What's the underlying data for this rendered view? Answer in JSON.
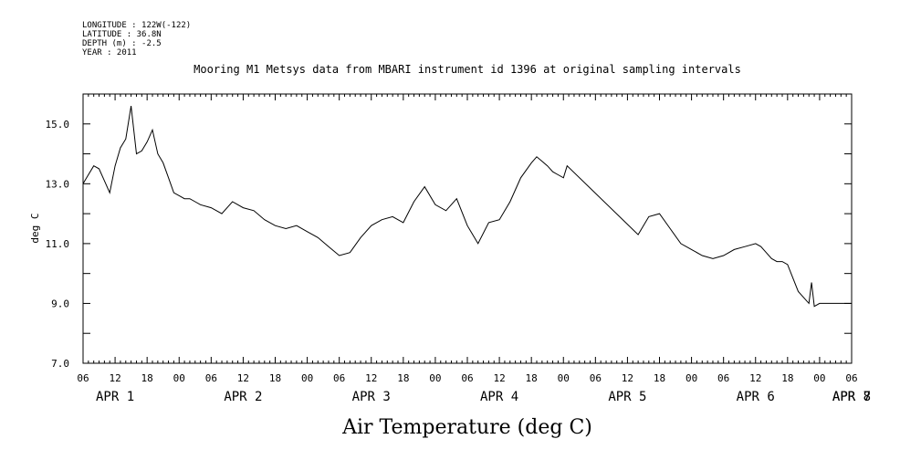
{
  "header": {
    "meta_lines": [
      "LONGITUDE : 122W(-122)",
      "LATITUDE : 36.8N",
      "DEPTH (m) : -2.5",
      "YEAR : 2011"
    ]
  },
  "chart_data": {
    "type": "line",
    "title": "Mooring M1 Metsys data from MBARI instrument id 1396 at original sampling intervals",
    "xlabel": "Air Temperature (deg C)",
    "ylabel": "deg C",
    "ylim": [
      7.0,
      16.0
    ],
    "y_ticks": [
      "7.0",
      "9.0",
      "11.0",
      "13.0",
      "15.0"
    ],
    "x_unit": "hours since APR 1 00:00",
    "xlim": [
      6,
      150
    ],
    "x_ticks": [
      "06",
      "12",
      "18",
      "00",
      "06",
      "12",
      "18",
      "00",
      "06",
      "12",
      "18",
      "00",
      "06",
      "12",
      "18",
      "00",
      "06",
      "12",
      "18",
      "00",
      "06",
      "12",
      "18",
      "00",
      "06"
    ],
    "x_date_labels": [
      "APR  1",
      "APR  2",
      "APR  3",
      "APR  4",
      "APR  5",
      "APR  6",
      "APR  7",
      "APR  8"
    ],
    "grid": false,
    "series": [
      {
        "x": [
          6.0,
          7.0,
          8.0,
          9.0,
          10.0,
          11.0,
          12.0,
          13.0,
          14.0,
          15.0,
          16.0,
          17.0,
          18.0,
          19.0,
          20.0,
          21.0,
          22.0,
          23.0,
          24.0,
          25.0,
          26.0,
          27.0,
          28.0,
          30.0,
          32.0,
          34.0,
          36.0,
          38.0,
          40.0,
          42.0,
          44.0,
          46.0,
          48.0,
          50.0,
          52.0,
          54.0,
          56.0,
          58.0,
          60.0,
          62.0,
          64.0,
          66.0,
          68.0,
          70.0,
          72.0,
          74.0,
          76.0,
          78.0,
          80.0,
          82.0,
          84.0,
          86.0,
          88.0,
          90.0,
          91.0,
          92.0,
          93.0,
          94.0,
          95.0,
          96.0,
          96.7,
          110.0,
          112.0,
          114.0,
          116.0,
          118.0,
          120.0,
          122.0,
          124.0,
          126.0,
          128.0,
          130.0,
          132.0,
          133.0,
          134.0,
          135.0,
          136.0,
          137.0,
          138.0,
          140.0,
          142.0,
          142.5,
          143.0,
          144.0,
          146.0,
          148.0,
          150.0
        ],
        "y": [
          13.0,
          13.3,
          13.6,
          13.5,
          13.1,
          12.7,
          13.6,
          14.2,
          14.5,
          15.6,
          14.0,
          14.1,
          14.4,
          14.8,
          14.0,
          13.7,
          13.2,
          12.7,
          12.6,
          12.5,
          12.5,
          12.4,
          12.3,
          12.2,
          12.0,
          12.4,
          12.2,
          12.1,
          11.8,
          11.6,
          11.5,
          11.6,
          11.4,
          11.2,
          10.9,
          10.6,
          10.7,
          11.2,
          11.6,
          11.8,
          11.9,
          11.7,
          12.4,
          12.9,
          12.3,
          12.1,
          12.5,
          11.6,
          11.0,
          11.7,
          11.8,
          12.4,
          13.2,
          13.7,
          13.9,
          13.75,
          13.6,
          13.4,
          13.3,
          13.2,
          13.6,
          11.3,
          11.9,
          12.0,
          11.5,
          11.0,
          10.8,
          10.6,
          10.5,
          10.6,
          10.8,
          10.9,
          11.0,
          10.9,
          10.7,
          10.5,
          10.4,
          10.4,
          10.3,
          9.4,
          9.0,
          9.7,
          8.9,
          9.0,
          9.0,
          9.0,
          9.0
        ]
      }
    ]
  }
}
